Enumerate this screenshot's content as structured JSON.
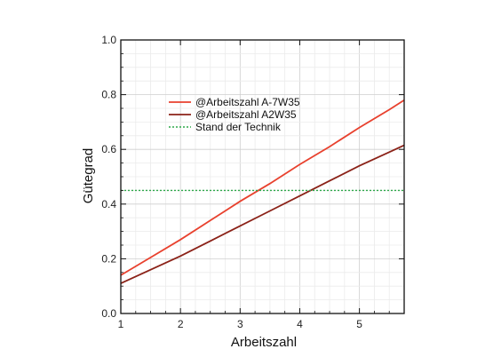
{
  "chart_data": {
    "type": "line",
    "title": "",
    "xlabel": "Arbeitszahl",
    "ylabel": "Gütegrad",
    "xlim": [
      1,
      5.75
    ],
    "ylim": [
      0.0,
      1.0
    ],
    "x_ticks": [
      "1",
      "2",
      "3",
      "4",
      "5"
    ],
    "y_ticks": [
      "0.0",
      "0.2",
      "0.4",
      "0.6",
      "0.8",
      "1.0"
    ],
    "grid": true,
    "legend_position": "upper-left-inside",
    "series": [
      {
        "name": "@Arbeitszahl A-7W35",
        "color": "#e8412e",
        "style": "solid",
        "x": [
          1.0,
          1.5,
          2.0,
          2.5,
          3.0,
          3.5,
          4.0,
          4.5,
          5.0,
          5.5,
          5.75
        ],
        "y": [
          0.14,
          0.205,
          0.27,
          0.34,
          0.41,
          0.475,
          0.545,
          0.61,
          0.68,
          0.745,
          0.78
        ]
      },
      {
        "name": "@Arbeitszahl A2W35",
        "color": "#8b2218",
        "style": "solid",
        "x": [
          1.0,
          1.5,
          2.0,
          2.5,
          3.0,
          3.5,
          4.0,
          4.5,
          5.0,
          5.5,
          5.75
        ],
        "y": [
          0.11,
          0.16,
          0.21,
          0.265,
          0.32,
          0.375,
          0.43,
          0.485,
          0.54,
          0.59,
          0.615
        ]
      },
      {
        "name": "Stand der Technik",
        "color": "#2ea84a",
        "style": "dotted",
        "x": [
          1.0,
          5.75
        ],
        "y": [
          0.45,
          0.45
        ]
      }
    ]
  }
}
